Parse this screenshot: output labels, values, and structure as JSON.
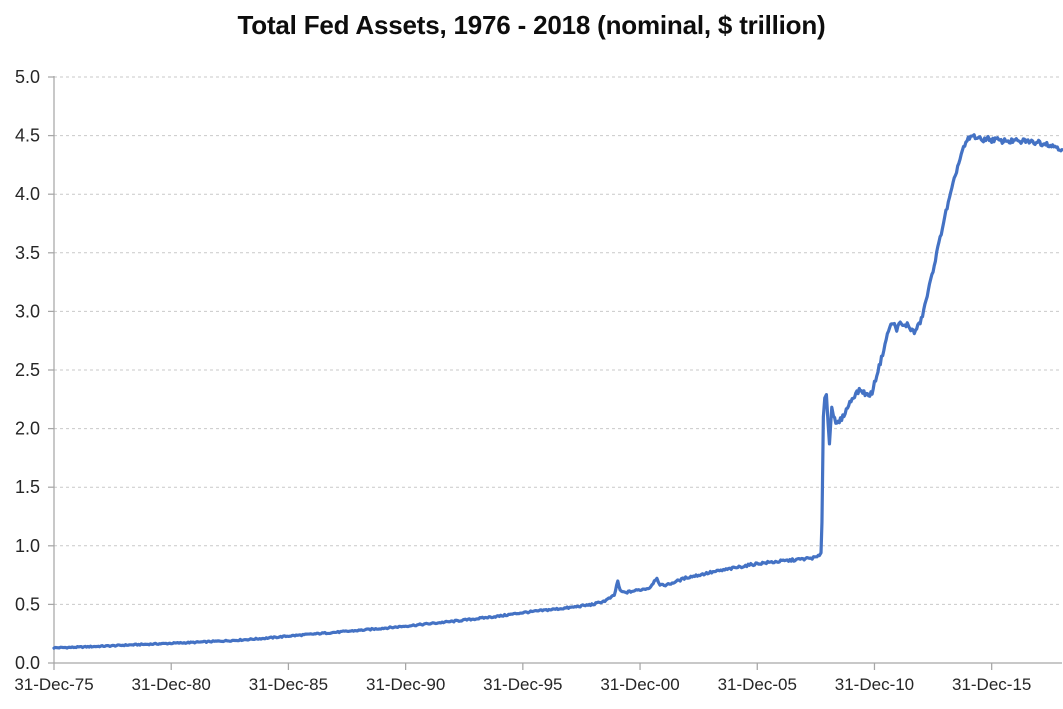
{
  "chart_data": {
    "type": "line",
    "title": "Total Fed Assets, 1976 - 2018 (nominal, $ trillion)",
    "xlabel": "",
    "ylabel": "",
    "xlim": [
      0,
      43
    ],
    "ylim": [
      0,
      5
    ],
    "grid": "horizontal-dashed",
    "legend_position": "none",
    "x_tick_positions": [
      0,
      5,
      10,
      15,
      20,
      25,
      30,
      35,
      40
    ],
    "x_tick_labels": [
      "31-Dec-75",
      "31-Dec-80",
      "31-Dec-85",
      "31-Dec-90",
      "31-Dec-95",
      "31-Dec-00",
      "31-Dec-05",
      "31-Dec-10",
      "31-Dec-15"
    ],
    "y_tick_labels": [
      "0.0",
      "0.5",
      "1.0",
      "1.5",
      "2.0",
      "2.5",
      "3.0",
      "3.5",
      "4.0",
      "4.5",
      "5.0"
    ],
    "colors": {
      "line": "#4472C4",
      "gridline": "#C9C9C9",
      "axis": "#A6A6A6",
      "tick_text": "#262626",
      "title_text": "#0d0d0d"
    },
    "line_width": 3.2,
    "noise_amplitude": 0.008,
    "series": [
      {
        "name": "Total Fed Assets ($ trillion)",
        "x_unit": "years since 31-Dec-75",
        "points": [
          [
            0,
            0.13
          ],
          [
            0.5,
            0.132
          ],
          [
            1,
            0.135
          ],
          [
            1.5,
            0.139
          ],
          [
            2,
            0.143
          ],
          [
            2.5,
            0.147
          ],
          [
            3,
            0.152
          ],
          [
            3.5,
            0.156
          ],
          [
            4,
            0.16
          ],
          [
            4.5,
            0.164
          ],
          [
            5,
            0.168
          ],
          [
            5.5,
            0.172
          ],
          [
            6,
            0.176
          ],
          [
            6.5,
            0.181
          ],
          [
            7,
            0.186
          ],
          [
            7.5,
            0.191
          ],
          [
            8,
            0.197
          ],
          [
            8.5,
            0.204
          ],
          [
            9,
            0.211
          ],
          [
            9.5,
            0.22
          ],
          [
            10,
            0.23
          ],
          [
            10.5,
            0.238
          ],
          [
            11,
            0.246
          ],
          [
            11.5,
            0.254
          ],
          [
            12,
            0.262
          ],
          [
            12.5,
            0.27
          ],
          [
            13,
            0.278
          ],
          [
            13.5,
            0.287
          ],
          [
            14,
            0.296
          ],
          [
            14.5,
            0.305
          ],
          [
            15,
            0.315
          ],
          [
            15.5,
            0.325
          ],
          [
            16,
            0.335
          ],
          [
            16.5,
            0.345
          ],
          [
            17,
            0.355
          ],
          [
            17.5,
            0.366
          ],
          [
            18,
            0.377
          ],
          [
            18.5,
            0.389
          ],
          [
            19,
            0.4
          ],
          [
            19.5,
            0.415
          ],
          [
            20,
            0.43
          ],
          [
            20.5,
            0.44
          ],
          [
            21,
            0.452
          ],
          [
            21.5,
            0.462
          ],
          [
            22,
            0.472
          ],
          [
            22.5,
            0.487
          ],
          [
            23,
            0.5
          ],
          [
            23.5,
            0.53
          ],
          [
            23.9,
            0.575
          ],
          [
            24.05,
            0.7
          ],
          [
            24.15,
            0.615
          ],
          [
            24.35,
            0.6
          ],
          [
            24.6,
            0.61
          ],
          [
            25,
            0.625
          ],
          [
            25.4,
            0.64
          ],
          [
            25.72,
            0.73
          ],
          [
            25.85,
            0.66
          ],
          [
            26.2,
            0.67
          ],
          [
            26.6,
            0.7
          ],
          [
            27,
            0.73
          ],
          [
            27.5,
            0.75
          ],
          [
            28,
            0.772
          ],
          [
            28.5,
            0.79
          ],
          [
            29,
            0.81
          ],
          [
            29.5,
            0.83
          ],
          [
            30,
            0.848
          ],
          [
            30.5,
            0.858
          ],
          [
            31,
            0.868
          ],
          [
            31.5,
            0.878
          ],
          [
            32,
            0.888
          ],
          [
            32.4,
            0.898
          ],
          [
            32.65,
            0.91
          ],
          [
            32.72,
            0.94
          ],
          [
            32.76,
            1.2
          ],
          [
            32.82,
            2.1
          ],
          [
            32.88,
            2.26
          ],
          [
            32.95,
            2.29
          ],
          [
            33.02,
            2.05
          ],
          [
            33.08,
            1.87
          ],
          [
            33.18,
            2.19
          ],
          [
            33.25,
            2.12
          ],
          [
            33.35,
            2.03
          ],
          [
            33.5,
            2.06
          ],
          [
            33.65,
            2.1
          ],
          [
            33.8,
            2.16
          ],
          [
            34,
            2.24
          ],
          [
            34.2,
            2.3
          ],
          [
            34.4,
            2.33
          ],
          [
            34.6,
            2.3
          ],
          [
            34.75,
            2.28
          ],
          [
            34.9,
            2.31
          ],
          [
            35.1,
            2.46
          ],
          [
            35.3,
            2.6
          ],
          [
            35.5,
            2.76
          ],
          [
            35.65,
            2.87
          ],
          [
            35.8,
            2.9
          ],
          [
            35.95,
            2.85
          ],
          [
            36.1,
            2.9
          ],
          [
            36.25,
            2.87
          ],
          [
            36.4,
            2.89
          ],
          [
            36.55,
            2.85
          ],
          [
            36.7,
            2.82
          ],
          [
            36.85,
            2.87
          ],
          [
            37,
            2.93
          ],
          [
            37.15,
            3.05
          ],
          [
            37.35,
            3.22
          ],
          [
            37.55,
            3.4
          ],
          [
            37.75,
            3.58
          ],
          [
            38,
            3.81
          ],
          [
            38.25,
            4.0
          ],
          [
            38.5,
            4.2
          ],
          [
            38.75,
            4.37
          ],
          [
            39,
            4.47
          ],
          [
            39.2,
            4.5
          ],
          [
            39.4,
            4.48
          ],
          [
            39.6,
            4.46
          ],
          [
            39.8,
            4.48
          ],
          [
            40,
            4.46
          ],
          [
            40.2,
            4.47
          ],
          [
            40.4,
            4.45
          ],
          [
            40.6,
            4.46
          ],
          [
            40.8,
            4.45
          ],
          [
            41,
            4.46
          ],
          [
            41.2,
            4.44
          ],
          [
            41.4,
            4.46
          ],
          [
            41.6,
            4.45
          ],
          [
            41.8,
            4.44
          ],
          [
            42,
            4.45
          ],
          [
            42.15,
            4.43
          ],
          [
            42.3,
            4.44
          ],
          [
            42.45,
            4.42
          ],
          [
            42.6,
            4.41
          ],
          [
            42.75,
            4.41
          ],
          [
            42.9,
            4.39
          ],
          [
            43,
            4.38
          ]
        ]
      }
    ]
  }
}
